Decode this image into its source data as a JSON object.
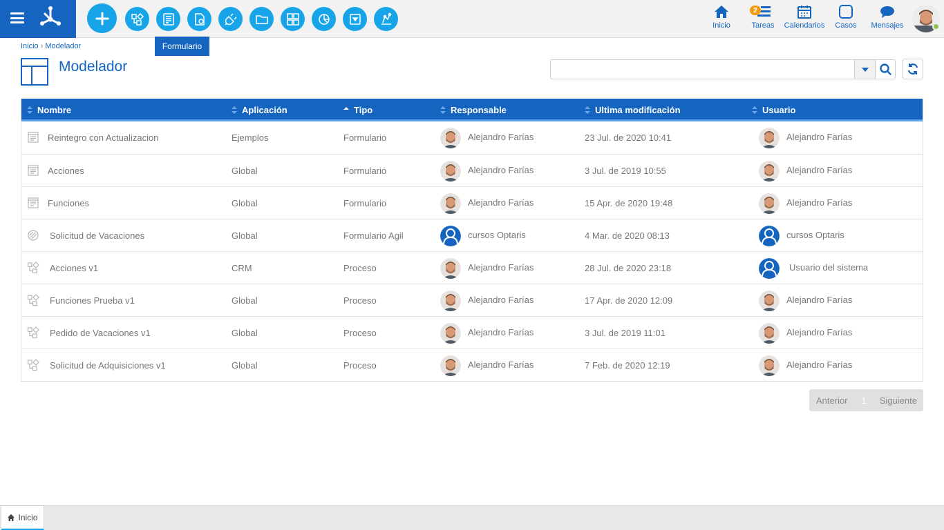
{
  "toolbar": {
    "tooltip": "Formulario",
    "buttons": [
      "add-icon",
      "process-icon",
      "form-icon",
      "settings-doc-icon",
      "plug-icon",
      "folder-icon",
      "dashboard-icon",
      "chart-icon",
      "query-icon",
      "datamodel-icon"
    ]
  },
  "nav": {
    "inicio": "Inicio",
    "tareas": "Tareas",
    "tareas_badge": "2",
    "calendarios": "Calendarios",
    "casos": "Casos",
    "mensajes": "Mensajes"
  },
  "breadcrumb": {
    "home": "Inicio",
    "sep": "›",
    "current": "Modelador"
  },
  "page": {
    "title": "Modelador"
  },
  "search": {
    "value": "",
    "placeholder": ""
  },
  "table": {
    "columns": [
      "Nombre",
      "Aplicación",
      "Tipo",
      "Responsable",
      "Ultima modificación",
      "Usuario"
    ],
    "rows": [
      {
        "icon": "form-icon",
        "nombre": "Reintegro con Actualizacion",
        "aplicacion": "Ejemplos",
        "tipo": "Formulario",
        "responsable": "Alejandro Farías",
        "resp_avatar": "photo",
        "modificacion": "23 Jul. de 2020 10:41",
        "usuario": "Alejandro Farías",
        "user_avatar": "photo"
      },
      {
        "icon": "form-icon",
        "nombre": "Acciones",
        "aplicacion": "Global",
        "tipo": "Formulario",
        "responsable": "Alejandro Farías",
        "resp_avatar": "photo",
        "modificacion": "3 Jul. de 2019 10:55",
        "usuario": "Alejandro Farías",
        "user_avatar": "photo"
      },
      {
        "icon": "form-icon",
        "nombre": "Funciones",
        "aplicacion": "Global",
        "tipo": "Formulario",
        "responsable": "Alejandro Farías",
        "resp_avatar": "photo",
        "modificacion": "15 Apr. de 2020 19:48",
        "usuario": "Alejandro Farías",
        "user_avatar": "photo"
      },
      {
        "icon": "agile-form-icon",
        "nombre": "Solicitud de Vacaciones",
        "aplicacion": "Global",
        "tipo": "Formulario Agil",
        "responsable": "cursos Optaris",
        "resp_avatar": "default",
        "modificacion": "4 Mar. de 2020 08:13",
        "usuario": "cursos Optaris",
        "user_avatar": "default"
      },
      {
        "icon": "process-icon",
        "nombre": "Acciones v1",
        "aplicacion": "CRM",
        "tipo": "Proceso",
        "responsable": "Alejandro Farías",
        "resp_avatar": "photo",
        "modificacion": "28 Jul. de 2020 23:18",
        "usuario": "Usuario del sistema",
        "user_avatar": "default"
      },
      {
        "icon": "process-icon",
        "nombre": "Funciones Prueba v1",
        "aplicacion": "Global",
        "tipo": "Proceso",
        "responsable": "Alejandro Farías",
        "resp_avatar": "photo",
        "modificacion": "17 Apr. de 2020 12:09",
        "usuario": "Alejandro Farías",
        "user_avatar": "photo"
      },
      {
        "icon": "process-icon",
        "nombre": "Pedido de Vacaciones v1",
        "aplicacion": "Global",
        "tipo": "Proceso",
        "responsable": "Alejandro Farías",
        "resp_avatar": "photo",
        "modificacion": "3 Jul. de 2019 11:01",
        "usuario": "Alejandro Farías",
        "user_avatar": "photo"
      },
      {
        "icon": "process-icon",
        "nombre": "Solicitud de Adquisiciones v1",
        "aplicacion": "Global",
        "tipo": "Proceso",
        "responsable": "Alejandro Farías",
        "resp_avatar": "photo",
        "modificacion": "7 Feb. de 2020 12:19",
        "usuario": "Alejandro Farías",
        "user_avatar": "photo"
      }
    ]
  },
  "pager": {
    "prev": "Anterior",
    "page": "1",
    "next": "Siguiente"
  },
  "bottom": {
    "tab_label": "Inicio"
  },
  "colors": {
    "primary": "#1565c0",
    "accent": "#17a4e8",
    "badge": "#f39c12",
    "online": "#8bc34a"
  }
}
